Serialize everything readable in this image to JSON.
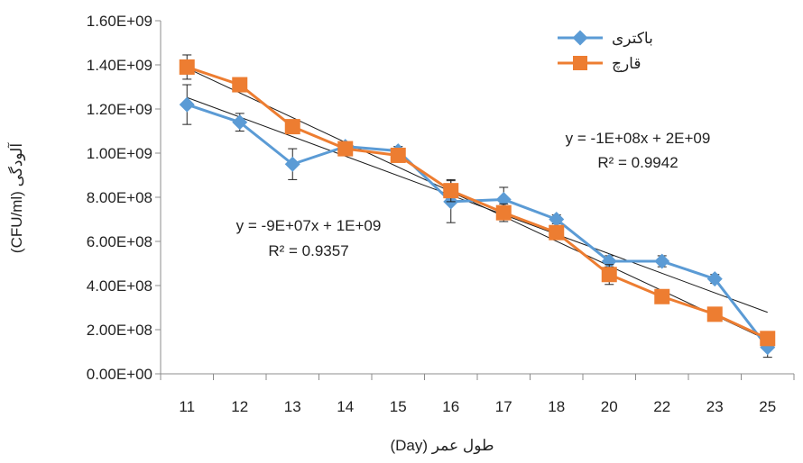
{
  "chart_data": {
    "type": "line",
    "title": "",
    "xlabel": "طول عمر  (Day)",
    "ylabel": "آلودگی (CFU/ml)",
    "categories": [
      "11",
      "12",
      "13",
      "14",
      "15",
      "16",
      "17",
      "18",
      "20",
      "22",
      "23",
      "25"
    ],
    "ylim": [
      0,
      1600000000
    ],
    "y_ticks": [
      {
        "value": 0,
        "label": "0.00E+00"
      },
      {
        "value": 200000000,
        "label": "2.00E+08"
      },
      {
        "value": 400000000,
        "label": "4.00E+08"
      },
      {
        "value": 600000000,
        "label": "6.00E+08"
      },
      {
        "value": 800000000,
        "label": "8.00E+08"
      },
      {
        "value": 1000000000,
        "label": "1.00E+09"
      },
      {
        "value": 1200000000,
        "label": "1.20E+09"
      },
      {
        "value": 1400000000,
        "label": "1.40E+09"
      },
      {
        "value": 1600000000,
        "label": "1.60E+09"
      }
    ],
    "grid": false,
    "legend_position": "top-right",
    "series": [
      {
        "name": "باکتری",
        "color": "#5b9bd5",
        "marker": "diamond",
        "values": [
          1220000000,
          1140000000,
          950000000,
          1030000000,
          1010000000,
          780000000,
          790000000,
          700000000,
          510000000,
          510000000,
          430000000,
          120000000
        ],
        "errors": [
          90000000,
          40000000,
          70000000,
          20000000,
          20000000,
          95000000,
          55000000,
          20000000,
          25000000,
          25000000,
          20000000,
          45000000
        ],
        "trend": {
          "slope_per_index": -88500000,
          "intercept_at_first": 1252000000
        }
      },
      {
        "name": "قارچ",
        "color": "#ed7d31",
        "marker": "square",
        "values": [
          1390000000,
          1310000000,
          1120000000,
          1020000000,
          990000000,
          830000000,
          730000000,
          640000000,
          450000000,
          350000000,
          270000000,
          160000000
        ],
        "errors": [
          55000000,
          20000000,
          20000000,
          20000000,
          20000000,
          50000000,
          40000000,
          20000000,
          45000000,
          20000000,
          20000000,
          20000000
        ],
        "trend": {
          "slope_per_index": -112000000,
          "intercept_at_first": 1385000000
        }
      }
    ],
    "annotations": [
      {
        "series": "قارچ",
        "equation": "y = -1E+08x + 2E+09",
        "r2_label": "R² = 0.9942"
      },
      {
        "series": "باکتری",
        "equation": "y = -9E+07x + 1E+09",
        "r2_label": "R² = 0.9357"
      }
    ]
  }
}
